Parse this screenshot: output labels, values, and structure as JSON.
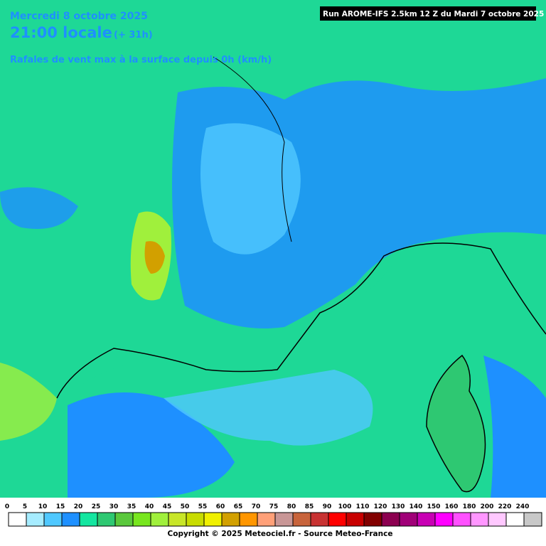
{
  "header": {
    "date": "Mercredi 8 octobre 2025",
    "time": "21:00 locale",
    "offset": "(+ 31h)",
    "subtitle": "Rafales de vent max à la surface depuis 0h (km/h)",
    "run": "Run AROME-IFS 2.5km 12 Z du Mardi 7 octobre 2025"
  },
  "legend": {
    "labels": [
      0,
      5,
      10,
      15,
      20,
      25,
      30,
      35,
      40,
      45,
      50,
      55,
      60,
      65,
      70,
      75,
      80,
      85,
      90,
      100,
      110,
      120,
      130,
      140,
      150,
      160,
      180,
      200,
      220,
      240
    ],
    "colors": [
      "#ffffff",
      "#a6ecff",
      "#4fc8ff",
      "#1e90ff",
      "#14e6a0",
      "#2ec872",
      "#5ac83c",
      "#78e61e",
      "#a0f03c",
      "#c8e628",
      "#c8dc00",
      "#f0f000",
      "#d2a000",
      "#ff9600",
      "#ffa078",
      "#c89696",
      "#c8643c",
      "#c83232",
      "#ff0000",
      "#c80000",
      "#820000",
      "#8c0050",
      "#a00078",
      "#c800b4",
      "#ff00ff",
      "#ff50ff",
      "#ff96ff",
      "#ffc8ff",
      "#ffffff",
      "#c8c8c8"
    ]
  },
  "footer": {
    "copyright": "Copyright © 2025 Meteociel.fr - Source Meteo-France"
  }
}
